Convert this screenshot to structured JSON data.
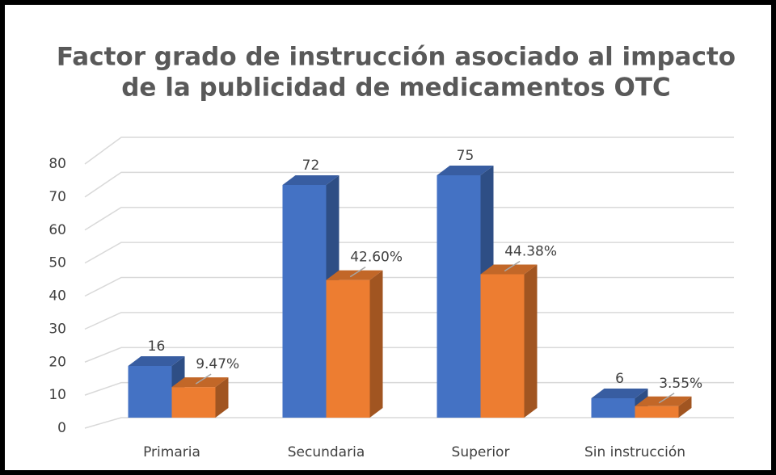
{
  "chart_data": {
    "type": "bar3d",
    "title": [
      "Factor grado de instrucción asociado al impacto",
      "de la publicidad de medicamentos OTC"
    ],
    "categories": [
      "Primaria",
      "Secundaria",
      "Superior",
      "Sin instrucción"
    ],
    "series": [
      {
        "color": "#4472c4",
        "values": [
          16,
          72,
          75,
          6
        ]
      },
      {
        "color": "#ed7d31",
        "values": [
          9.47,
          42.6,
          44.38,
          3.55
        ],
        "value_labels": [
          "9.47%",
          "42.60%",
          "44.38%",
          "3.55%"
        ]
      }
    ],
    "ylim": [
      0,
      80
    ],
    "yticks": [
      0,
      10,
      20,
      30,
      40,
      50,
      60,
      70,
      80
    ],
    "grid": true
  }
}
